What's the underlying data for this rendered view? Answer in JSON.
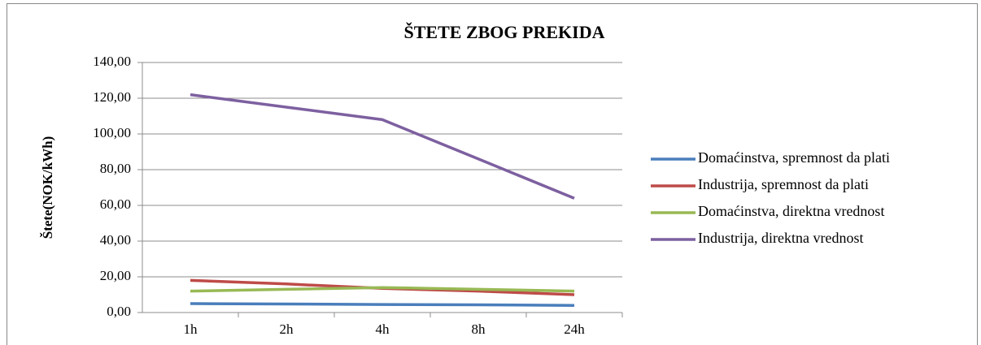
{
  "chart_data": {
    "type": "line",
    "title": "ŠTETE ZBOG PREKIDA",
    "y_label": "Štete(NOK/kWh)",
    "categories": [
      "1h",
      "2h",
      "4h",
      "8h",
      "24h"
    ],
    "series": [
      {
        "name": "Domaćinstva, spremnost da plati",
        "color": "#4a7ebb",
        "values": [
          5,
          4.8,
          4.5,
          4.3,
          4
        ]
      },
      {
        "name": "Industrija, spremnost da plati",
        "color": "#be4b48",
        "values": [
          18,
          16,
          13.5,
          12,
          10
        ]
      },
      {
        "name": "Domaćinstva, direktna vrednost",
        "color": "#98b954",
        "values": [
          12,
          13,
          14,
          13,
          12
        ]
      },
      {
        "name": "Industrija, direktna vrednost",
        "color": "#7d60a0",
        "values": [
          122,
          115,
          108,
          86,
          64
        ]
      }
    ],
    "ylim": [
      0,
      140
    ],
    "yticks": [
      {
        "value": 0,
        "label": "0,00"
      },
      {
        "value": 20,
        "label": "20,00"
      },
      {
        "value": 40,
        "label": "40,00"
      },
      {
        "value": 60,
        "label": "60,00"
      },
      {
        "value": 80,
        "label": "80,00"
      },
      {
        "value": 100,
        "label": "100,00"
      },
      {
        "value": 120,
        "label": "120,00"
      },
      {
        "value": 140,
        "label": "140,00"
      }
    ],
    "grid": true,
    "legend": "right"
  }
}
